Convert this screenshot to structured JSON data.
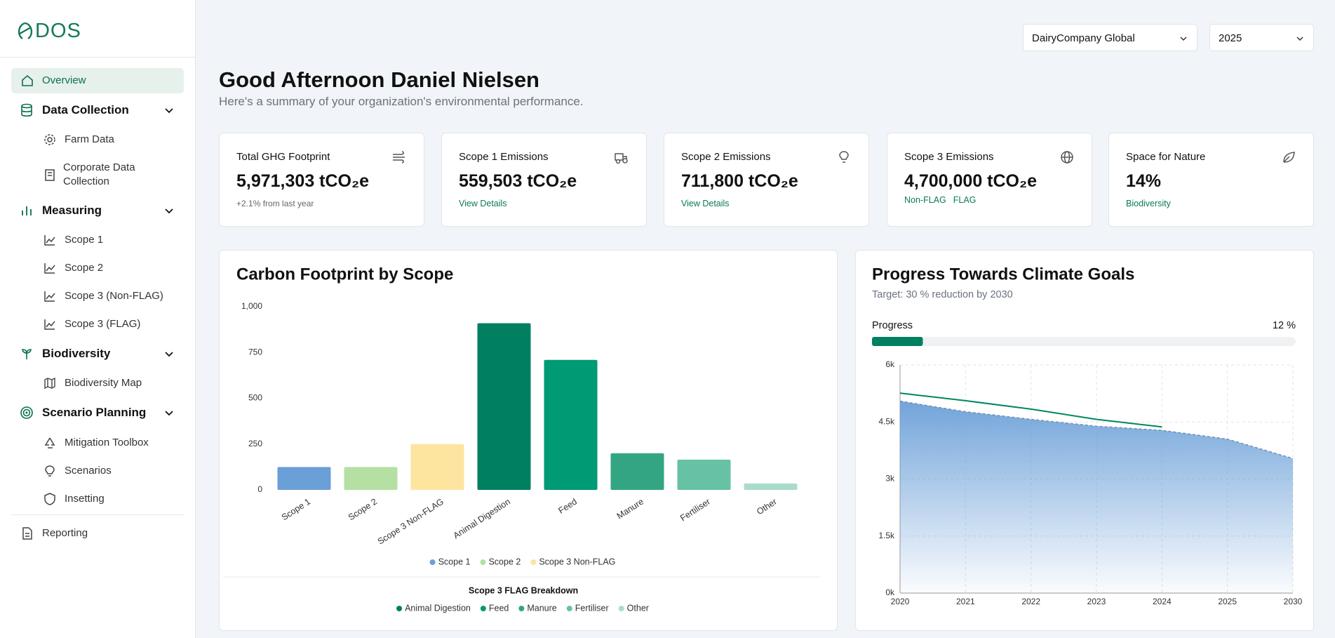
{
  "brand": "DOS",
  "sidebar": {
    "items": [
      {
        "label": "Overview"
      },
      {
        "label": "Data Collection",
        "children": [
          {
            "label": "Farm Data"
          },
          {
            "label": "Corporate Data Collection"
          }
        ]
      },
      {
        "label": "Measuring",
        "children": [
          {
            "label": "Scope 1"
          },
          {
            "label": "Scope 2"
          },
          {
            "label": "Scope 3 (Non-FLAG)"
          },
          {
            "label": "Scope 3 (FLAG)"
          }
        ]
      },
      {
        "label": "Biodiversity",
        "children": [
          {
            "label": "Biodiversity Map"
          }
        ]
      },
      {
        "label": "Scenario Planning",
        "children": [
          {
            "label": "Mitigation Toolbox"
          },
          {
            "label": "Scenarios"
          },
          {
            "label": "Insetting"
          }
        ]
      },
      {
        "label": "Reporting"
      }
    ]
  },
  "header": {
    "greeting": "Good Afternoon Daniel Nielsen",
    "subtitle": "Here's a summary of your organization's environmental performance.",
    "selectors": [
      "DairyCompany Global",
      "2025"
    ]
  },
  "cards": [
    {
      "title": "Total GHG Footprint",
      "value": "5,971,303 tCO₂e",
      "note": "+2.1% from last year"
    },
    {
      "title": "Scope 1 Emissions",
      "value": "559,503 tCO₂e",
      "links": [
        "View Details"
      ]
    },
    {
      "title": "Scope 2 Emissions",
      "value": "711,800 tCO₂e",
      "links": [
        "View Details"
      ]
    },
    {
      "title": "Scope 3 Emissions",
      "value": "4,700,000 tCO₂e",
      "links": [
        "Non-FLAG",
        "FLAG"
      ]
    },
    {
      "title": "Space for Nature",
      "value": "14%",
      "links": [
        "Biodiversity"
      ]
    }
  ],
  "chart_data": [
    {
      "type": "bar",
      "title": "Carbon Footprint by Scope",
      "categories": [
        "Scope 1",
        "Scope 2",
        "Scope 3 Non-FLAG",
        "Animal Digestion",
        "Feed",
        "Manure",
        "Fertiliser",
        "Other"
      ],
      "values": [
        125,
        125,
        250,
        910,
        710,
        200,
        165,
        35
      ],
      "colors": [
        "#6a9fd8",
        "#b5e0a3",
        "#fde5a0",
        "#008060",
        "#009a75",
        "#34a582",
        "#66c1a5",
        "#a8dcc9"
      ],
      "ylim": [
        0,
        1000
      ],
      "yticks": [
        0,
        250,
        500,
        750,
        {
          "value": 1000,
          "label": "1,000"
        }
      ],
      "legend_title": "Scope 3 FLAG Breakdown"
    },
    {
      "type": "line",
      "title": "Progress Towards Climate Goals",
      "subtitle": "Target: 30 % reduction by 2030",
      "progress": {
        "label": "Progress",
        "value": 12,
        "value_label": "12 %"
      },
      "categories": [
        "2020",
        "2021",
        "2022",
        "2023",
        "2024",
        "2025",
        "2030"
      ],
      "series": [
        {
          "color": "#6a9fd8",
          "area": true,
          "values": [
            5050,
            4770,
            4570,
            4390,
            4280,
            4050,
            3540
          ]
        },
        {
          "color": "#00875f",
          "values": [
            5260,
            5060,
            4840,
            4570,
            4370,
            null,
            null
          ]
        }
      ],
      "ylim": [
        0,
        6000
      ],
      "yticks": [
        {
          "value": 0,
          "label": "0k"
        },
        {
          "value": 1500,
          "label": "1.5k"
        },
        {
          "value": 3000,
          "label": "3k"
        },
        {
          "value": 4500,
          "label": "4.5k"
        },
        {
          "value": 6000,
          "label": "6k"
        }
      ],
      "grid": true
    }
  ]
}
